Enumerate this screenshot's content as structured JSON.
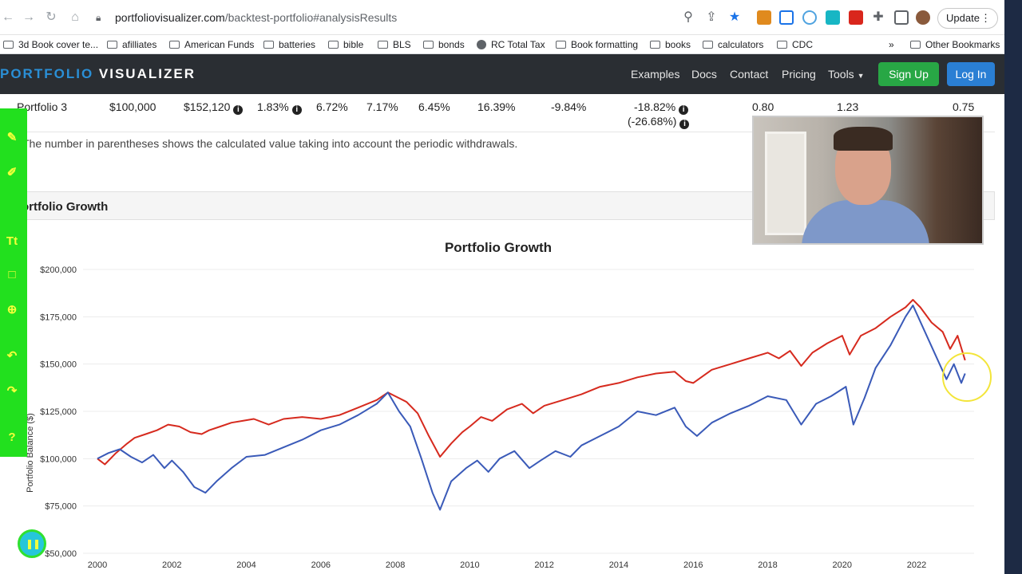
{
  "browser": {
    "url_host": "portfoliovisualizer.com",
    "url_path": "/backtest-portfolio#analysisResults",
    "update_label": "Update",
    "update_dots": "⋮"
  },
  "bookmarks": {
    "items": [
      "3d Book cover te...",
      "afilliates",
      "American Funds",
      "batteries",
      "bible",
      "BLS",
      "bonds",
      "RC Total Tax",
      "Book formatting",
      "books",
      "calculators",
      "CDC"
    ],
    "overflow": "»",
    "other": "Other Bookmarks"
  },
  "site": {
    "logo_part1": "PORTFOLIO",
    "logo_part2": "VISUALIZER",
    "nav": [
      "Examples",
      "Docs",
      "Contact",
      "Pricing",
      "Tools"
    ],
    "signup": "Sign Up",
    "login": "Log In"
  },
  "table": {
    "row": {
      "name": "Portfolio 3",
      "initial": "$100,000",
      "final": "$152,120",
      "cagr": "1.83%",
      "stdev": "6.72%",
      "best_year": "7.17%",
      "worst_year": "6.45%",
      "c8": "16.39%",
      "c9": "-9.84%",
      "max_dd": "-18.82%",
      "max_dd_withdrawals": "(-26.68%)",
      "sharpe": "0.80",
      "sortino": "1.23",
      "corr": "0.75"
    },
    "note": "The number in parentheses shows the calculated value taking into account the periodic withdrawals."
  },
  "panel": {
    "title": "Portfolio Growth"
  },
  "chart_data": {
    "type": "line",
    "title": "Portfolio Growth",
    "ylabel": "Portfolio Balance ($)",
    "xlabel": "",
    "xlim": [
      2000,
      2023.5
    ],
    "ylim": [
      50000,
      200000
    ],
    "x_ticks": [
      "2000",
      "2002",
      "2004",
      "2006",
      "2008",
      "2010",
      "2012",
      "2014",
      "2016",
      "2018",
      "2020",
      "2022"
    ],
    "y_ticks": [
      "$50,000",
      "$75,000",
      "$100,000",
      "$125,000",
      "$150,000",
      "$175,000",
      "$200,000"
    ],
    "series": [
      {
        "color": "#d62a1e",
        "points": [
          [
            2000,
            100000
          ],
          [
            2000.2,
            97000
          ],
          [
            2000.5,
            103000
          ],
          [
            2000.8,
            108000
          ],
          [
            2001,
            111000
          ],
          [
            2001.3,
            113000
          ],
          [
            2001.6,
            115000
          ],
          [
            2001.9,
            118000
          ],
          [
            2002.2,
            117000
          ],
          [
            2002.5,
            114000
          ],
          [
            2002.8,
            113000
          ],
          [
            2003,
            115000
          ],
          [
            2003.3,
            117000
          ],
          [
            2003.6,
            119000
          ],
          [
            2003.9,
            120000
          ],
          [
            2004.2,
            121000
          ],
          [
            2004.6,
            118000
          ],
          [
            2005,
            121000
          ],
          [
            2005.5,
            122000
          ],
          [
            2006,
            121000
          ],
          [
            2006.5,
            123000
          ],
          [
            2007,
            127000
          ],
          [
            2007.5,
            131000
          ],
          [
            2007.8,
            135000
          ],
          [
            2008,
            133000
          ],
          [
            2008.3,
            130000
          ],
          [
            2008.6,
            124000
          ],
          [
            2008.9,
            112000
          ],
          [
            2009.2,
            101000
          ],
          [
            2009.5,
            108000
          ],
          [
            2009.8,
            114000
          ],
          [
            2010,
            117000
          ],
          [
            2010.3,
            122000
          ],
          [
            2010.6,
            120000
          ],
          [
            2011,
            126000
          ],
          [
            2011.4,
            129000
          ],
          [
            2011.7,
            124000
          ],
          [
            2012,
            128000
          ],
          [
            2012.5,
            131000
          ],
          [
            2013,
            134000
          ],
          [
            2013.5,
            138000
          ],
          [
            2014,
            140000
          ],
          [
            2014.5,
            143000
          ],
          [
            2015,
            145000
          ],
          [
            2015.5,
            146000
          ],
          [
            2015.8,
            141000
          ],
          [
            2016,
            140000
          ],
          [
            2016.5,
            147000
          ],
          [
            2017,
            150000
          ],
          [
            2017.5,
            153000
          ],
          [
            2018,
            156000
          ],
          [
            2018.3,
            153000
          ],
          [
            2018.6,
            157000
          ],
          [
            2018.9,
            149000
          ],
          [
            2019.2,
            156000
          ],
          [
            2019.6,
            161000
          ],
          [
            2020,
            165000
          ],
          [
            2020.2,
            155000
          ],
          [
            2020.5,
            165000
          ],
          [
            2020.9,
            169000
          ],
          [
            2021.3,
            175000
          ],
          [
            2021.7,
            180000
          ],
          [
            2021.9,
            184000
          ],
          [
            2022.1,
            180000
          ],
          [
            2022.4,
            172000
          ],
          [
            2022.7,
            167000
          ],
          [
            2022.9,
            158000
          ],
          [
            2023.1,
            165000
          ],
          [
            2023.3,
            152000
          ]
        ]
      },
      {
        "color": "#3a5ab8",
        "points": [
          [
            2000,
            100000
          ],
          [
            2000.3,
            103000
          ],
          [
            2000.6,
            105000
          ],
          [
            2000.9,
            101000
          ],
          [
            2001.2,
            98000
          ],
          [
            2001.5,
            102000
          ],
          [
            2001.8,
            95000
          ],
          [
            2002,
            99000
          ],
          [
            2002.3,
            93000
          ],
          [
            2002.6,
            85000
          ],
          [
            2002.9,
            82000
          ],
          [
            2003.2,
            88000
          ],
          [
            2003.6,
            95000
          ],
          [
            2004,
            101000
          ],
          [
            2004.5,
            102000
          ],
          [
            2005,
            106000
          ],
          [
            2005.5,
            110000
          ],
          [
            2006,
            115000
          ],
          [
            2006.5,
            118000
          ],
          [
            2007,
            123000
          ],
          [
            2007.5,
            129000
          ],
          [
            2007.8,
            135000
          ],
          [
            2008.1,
            125000
          ],
          [
            2008.4,
            117000
          ],
          [
            2008.7,
            100000
          ],
          [
            2009,
            82000
          ],
          [
            2009.2,
            73000
          ],
          [
            2009.5,
            88000
          ],
          [
            2009.9,
            95000
          ],
          [
            2010.2,
            99000
          ],
          [
            2010.5,
            93000
          ],
          [
            2010.8,
            100000
          ],
          [
            2011.2,
            104000
          ],
          [
            2011.6,
            95000
          ],
          [
            2011.9,
            99000
          ],
          [
            2012.3,
            104000
          ],
          [
            2012.7,
            101000
          ],
          [
            2013,
            107000
          ],
          [
            2013.5,
            112000
          ],
          [
            2014,
            117000
          ],
          [
            2014.5,
            125000
          ],
          [
            2015,
            123000
          ],
          [
            2015.5,
            127000
          ],
          [
            2015.8,
            117000
          ],
          [
            2016.1,
            112000
          ],
          [
            2016.5,
            119000
          ],
          [
            2017,
            124000
          ],
          [
            2017.5,
            128000
          ],
          [
            2018,
            133000
          ],
          [
            2018.5,
            131000
          ],
          [
            2018.9,
            118000
          ],
          [
            2019.3,
            129000
          ],
          [
            2019.7,
            133000
          ],
          [
            2020.1,
            138000
          ],
          [
            2020.3,
            118000
          ],
          [
            2020.6,
            132000
          ],
          [
            2020.9,
            148000
          ],
          [
            2021.3,
            160000
          ],
          [
            2021.7,
            175000
          ],
          [
            2021.9,
            181000
          ],
          [
            2022.2,
            168000
          ],
          [
            2022.5,
            155000
          ],
          [
            2022.8,
            142000
          ],
          [
            2023,
            150000
          ],
          [
            2023.2,
            140000
          ],
          [
            2023.3,
            145000
          ]
        ]
      }
    ]
  },
  "annotation_tools": [
    "pen-tool",
    "highlighter-tool",
    "text-tool",
    "rectangle-tool",
    "zoom-tool",
    "undo-tool",
    "redo-tool",
    "help-tool"
  ]
}
